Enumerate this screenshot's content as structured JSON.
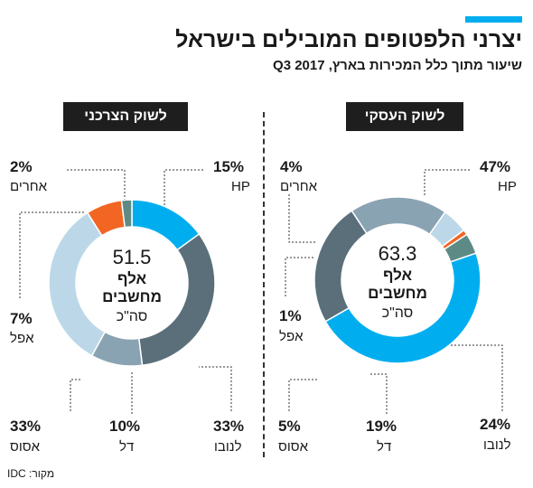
{
  "header": {
    "title": "יצרני הלפטופים המובילים בישראל",
    "subtitle": "שיעור מתוך כלל המכירות בארץ, Q3 2017",
    "accent_color": "#00aeef"
  },
  "source": "מקור: IDC",
  "chart_data": [
    {
      "type": "pie",
      "title": "לשוק העסקי",
      "center": {
        "value": "63.3",
        "line1": "אלף",
        "line2": "מחשבים",
        "line3": "סה\"כ"
      },
      "slices": [
        {
          "name": "HP",
          "value": 47,
          "label": "47%",
          "color": "#00aeef"
        },
        {
          "name": "לנובו",
          "value": 24,
          "label": "24%",
          "color": "#5a6f7a"
        },
        {
          "name": "דל",
          "value": 19,
          "label": "19%",
          "color": "#8aa3b3"
        },
        {
          "name": "אסוס",
          "value": 5,
          "label": "5%",
          "color": "#bcd8e8"
        },
        {
          "name": "אפל",
          "value": 1,
          "label": "1%",
          "color": "#f26522"
        },
        {
          "name": "אחרים",
          "value": 4,
          "label": "4%",
          "color": "#5e8a86"
        }
      ]
    },
    {
      "type": "pie",
      "title": "לשוק הצרכני",
      "center": {
        "value": "51.5",
        "line1": "אלף",
        "line2": "מחשבים",
        "line3": "סה\"כ"
      },
      "slices": [
        {
          "name": "HP",
          "value": 15,
          "label": "15%",
          "color": "#00aeef"
        },
        {
          "name": "לנובו",
          "value": 33,
          "label": "33%",
          "color": "#5a6f7a"
        },
        {
          "name": "דל",
          "value": 10,
          "label": "10%",
          "color": "#8aa3b3"
        },
        {
          "name": "אסוס",
          "value": 33,
          "label": "33%",
          "color": "#bcd8e8"
        },
        {
          "name": "אפל",
          "value": 7,
          "label": "7%",
          "color": "#f26522"
        },
        {
          "name": "אחרים",
          "value": 2,
          "label": "2%",
          "color": "#5e8a86"
        }
      ]
    }
  ]
}
